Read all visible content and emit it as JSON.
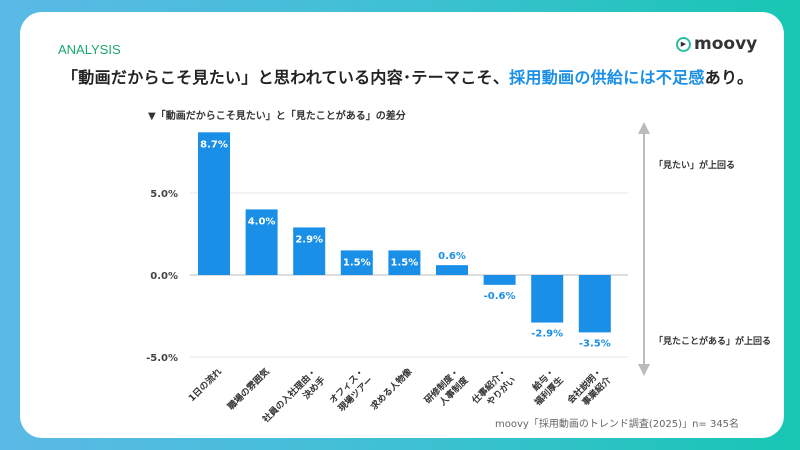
{
  "tag": "ANALYSIS",
  "logo": {
    "text": "moovy",
    "icon": "play-circle-icon"
  },
  "headline": {
    "part1": "「動画だからこそ見たい」と思われている内容･テーマこそ、",
    "highlight": "採用動画の供給には不足感",
    "part2": "あり。",
    "highlight_color": "#1a8fe8"
  },
  "notes": {
    "up": "「見たい」が上回る",
    "down": "「見たことがある」が上回る"
  },
  "source": "moovy「採用動画のトレンド調査(2025)」n= 345名",
  "chart_data": {
    "type": "bar",
    "title": "▼「動画だからこそ見たい」と「見たことがある」の差分",
    "categories": [
      "1日の流れ",
      "職場の雰囲気",
      "社員の入社理由・決め手",
      "オフィス・現場ツアー",
      "求める人物像",
      "研修制度・人事制度",
      "仕事紹介・やりがい",
      "給与・福利厚生",
      "会社説明・事業紹介"
    ],
    "values": [
      8.7,
      4.0,
      2.9,
      1.5,
      1.5,
      0.6,
      -0.6,
      -2.9,
      -3.5
    ],
    "data_labels": [
      "8.7%",
      "4.0%",
      "2.9%",
      "1.5%",
      "1.5%",
      "0.6%",
      "-0.6%",
      "-2.9%",
      "-3.5%"
    ],
    "yticks": [
      5.0,
      0.0,
      -5.0
    ],
    "ytick_labels": [
      "5.0%",
      "0.0%",
      "-5.0%"
    ],
    "ylim": [
      -5,
      9
    ],
    "grid": true,
    "bar_color": "#1a8fe8"
  }
}
